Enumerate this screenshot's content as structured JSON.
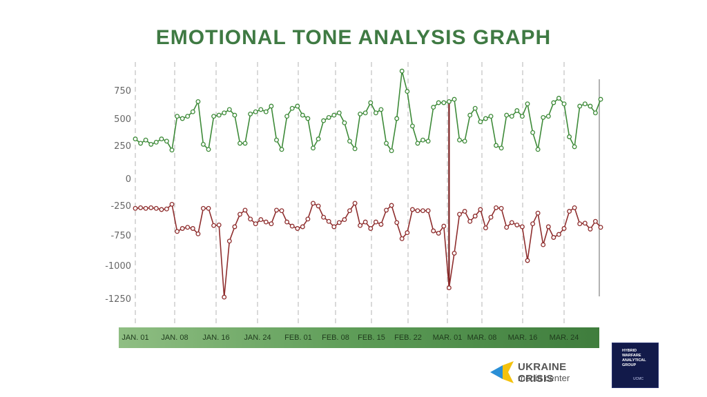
{
  "title": "EMOTIONAL TONE ANALYSIS GRAPH",
  "chart_data": {
    "type": "line",
    "title": "EMOTIONAL TONE ANALYSIS GRAPH",
    "xlabel": "",
    "ylabel": "",
    "y_ticks": [
      "750",
      "500",
      "250",
      "0",
      "-250",
      "-750",
      "-1000",
      "-1250"
    ],
    "x_ticks": [
      "JAN. 01",
      "JAN. 08",
      "JAN. 16",
      "JAN. 24",
      "FEB. 01",
      "FEB. 08",
      "FEB. 15",
      "FEB. 22",
      "MAR. 01",
      "MAR. 08",
      "MAR. 16",
      "MAR. 24"
    ],
    "grid": "vertical dashed",
    "annotation": "vertical line at MAR. 01",
    "series": [
      {
        "color": "#3d8a38",
        "values": [
          310,
          270,
          300,
          260,
          280,
          310,
          290,
          215,
          520,
          500,
          520,
          560,
          650,
          260,
          220,
          520,
          530,
          550,
          580,
          530,
          270,
          270,
          540,
          560,
          580,
          560,
          610,
          300,
          220,
          520,
          590,
          610,
          530,
          500,
          230,
          310,
          480,
          510,
          530,
          550,
          460,
          290,
          225,
          540,
          550,
          640,
          550,
          580,
          270,
          210,
          500,
          920,
          740,
          430,
          270,
          300,
          290,
          600,
          640,
          640,
          650,
          670,
          300,
          290,
          530,
          590,
          470,
          500,
          520,
          250,
          230,
          530,
          520,
          570,
          520,
          630,
          370,
          220,
          510,
          520,
          640,
          680,
          630,
          330,
          240,
          610,
          630,
          610,
          550,
          670
        ]
      },
      {
        "color": "#8e2d2d",
        "values": [
          -300,
          -290,
          -300,
          -290,
          -300,
          -320,
          -310,
          -240,
          -690,
          -640,
          -620,
          -640,
          -730,
          -300,
          -300,
          -590,
          -580,
          -1240,
          -800,
          -610,
          -400,
          -330,
          -480,
          -560,
          -490,
          -530,
          -560,
          -330,
          -340,
          -530,
          -600,
          -640,
          -610,
          -480,
          -230,
          -260,
          -450,
          -520,
          -610,
          -540,
          -490,
          -340,
          -230,
          -590,
          -530,
          -640,
          -530,
          -570,
          -330,
          -250,
          -540,
          -780,
          -710,
          -320,
          -340,
          -340,
          -340,
          -680,
          -720,
          -600,
          -1170,
          -900,
          -400,
          -350,
          -520,
          -430,
          -320,
          -630,
          -450,
          -290,
          -300,
          -620,
          -540,
          -580,
          -610,
          -960,
          -560,
          -380,
          -830,
          -610,
          -770,
          -740,
          -640,
          -350,
          -290,
          -560,
          -550,
          -650,
          -520,
          -620
        ]
      }
    ]
  },
  "logos": {
    "ucmc_line1": "UKRAINE CRISIS",
    "ucmc_line2": "media center",
    "hwag_lines": [
      "HYBRID",
      "WARFARE",
      "ANALYTICAL",
      "GROUP"
    ],
    "hwag_small": "UCMC"
  }
}
